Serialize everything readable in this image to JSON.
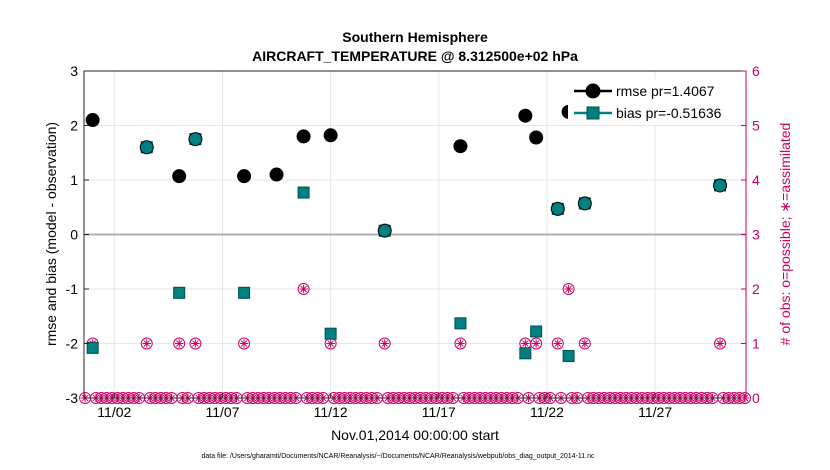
{
  "chart_data": {
    "type": "scatter",
    "title": "Southern Hemisphere",
    "subtitle": "AIRCRAFT_TEMPERATURE @ 8.312500e+02 hPa",
    "xlabel": "Nov.01,2014 00:00:00 start",
    "ylabel": "rmse and bias (model - observation)",
    "y2label": "# of obs: o=possible; ∗=assimilated",
    "xlim": [
      0.6,
      31.2
    ],
    "ylim": [
      -3,
      3
    ],
    "y2lim": [
      0,
      6
    ],
    "x_ticks": [
      {
        "value": 2,
        "label": "11/02"
      },
      {
        "value": 7,
        "label": "11/07"
      },
      {
        "value": 12,
        "label": "11/12"
      },
      {
        "value": 17,
        "label": "11/17"
      },
      {
        "value": 22,
        "label": "11/22"
      },
      {
        "value": 27,
        "label": "11/27"
      }
    ],
    "y_ticks": [
      -3,
      -2,
      -1,
      0,
      1,
      2,
      3
    ],
    "y2_ticks": [
      0,
      1,
      2,
      3,
      4,
      5,
      6
    ],
    "grid": true,
    "legend_position": "top-right",
    "series": [
      {
        "name": "rmse pr=1.4067",
        "color": "#000000",
        "marker": "circle",
        "x": [
          1.0,
          3.5,
          5.0,
          5.75,
          8.0,
          9.5,
          10.75,
          12.0,
          14.5,
          18.0,
          21.0,
          21.5,
          22.5,
          23.0,
          23.75,
          30.0
        ],
        "y": [
          2.1,
          1.6,
          1.07,
          1.75,
          1.07,
          1.1,
          1.8,
          1.82,
          0.07,
          1.62,
          2.18,
          1.78,
          0.47,
          2.25,
          0.57,
          0.9
        ]
      },
      {
        "name": "bias pr=-0.51636",
        "color": "#008080",
        "marker": "square",
        "x": [
          1.0,
          3.5,
          5.0,
          5.75,
          8.0,
          10.75,
          12.0,
          14.5,
          18.0,
          21.0,
          21.5,
          22.5,
          23.0,
          23.75,
          30.0
        ],
        "y": [
          -2.08,
          1.6,
          -1.07,
          1.75,
          -1.07,
          0.77,
          -1.82,
          0.07,
          -1.63,
          -2.18,
          -1.78,
          0.47,
          -2.23,
          0.57,
          0.9
        ]
      }
    ],
    "obs_counts": {
      "name": "# of obs",
      "color": "#cc0066",
      "markers": "o=possible; *=assimilated",
      "x": [
        1.0,
        3.5,
        5.0,
        5.75,
        8.0,
        10.75,
        12.0,
        14.5,
        18.0,
        21.0,
        21.5,
        22.5,
        23.0,
        23.75,
        30.0
      ],
      "possible": [
        1,
        1,
        1,
        1,
        1,
        2,
        1,
        1,
        1,
        1,
        1,
        1,
        2,
        1,
        1
      ],
      "assimilated": [
        1,
        1,
        1,
        1,
        1,
        2,
        1,
        1,
        1,
        1,
        1,
        1,
        2,
        1,
        1
      ],
      "zero_marker_step": 0.25
    },
    "zero_line": 0
  },
  "footnote": "data file: /Users/gharamti/Documents/NCAR/Reanalysis/~/Documents/NCAR/Reanalysis/webpub/obs_diag_output_2014-11.nc"
}
